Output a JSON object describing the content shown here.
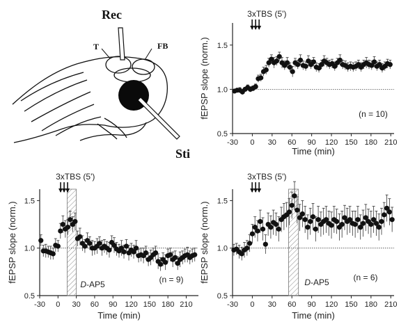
{
  "figure": {
    "schematic": {
      "labels": {
        "rec": "Rec",
        "t": "T",
        "fb": "FB",
        "sti": "Sti"
      }
    }
  },
  "chart_data": [
    {
      "id": "top-right",
      "type": "scatter",
      "stim_label": "3xTBS (5')",
      "n_label": "(n = 10)",
      "xlabel": "Time (min)",
      "ylabel": "fEPSP slope (norm.)",
      "xlim": [
        -30,
        215
      ],
      "ylim": [
        0.5,
        1.75
      ],
      "xticks": [
        -30,
        0,
        30,
        60,
        90,
        120,
        150,
        180,
        210
      ],
      "yticks": [
        0.5,
        1.0,
        1.5
      ],
      "baseline": 1.0,
      "arrows_x": 5,
      "drug_bar": null,
      "series": [
        {
          "x": [
            -27,
            -23,
            -19,
            -15,
            -11,
            -7,
            -3,
            1,
            5,
            9,
            13,
            17,
            21,
            25,
            29,
            33,
            37,
            41,
            45,
            49,
            53,
            57,
            61,
            65,
            69,
            73,
            77,
            81,
            85,
            89,
            93,
            97,
            101,
            105,
            109,
            113,
            117,
            121,
            125,
            129,
            133,
            137,
            141,
            145,
            149,
            153,
            157,
            161,
            165,
            169,
            173,
            177,
            181,
            185,
            189,
            193,
            197,
            201,
            205,
            209
          ],
          "y": [
            0.98,
            0.99,
            0.99,
            0.97,
            1.0,
            1.02,
            1.0,
            1.01,
            1.03,
            1.12,
            1.13,
            1.2,
            1.22,
            1.3,
            1.34,
            1.3,
            1.32,
            1.37,
            1.3,
            1.27,
            1.3,
            1.25,
            1.2,
            1.3,
            1.28,
            1.33,
            1.27,
            1.26,
            1.32,
            1.28,
            1.31,
            1.25,
            1.24,
            1.28,
            1.32,
            1.3,
            1.28,
            1.29,
            1.26,
            1.3,
            1.33,
            1.28,
            1.27,
            1.25,
            1.26,
            1.25,
            1.26,
            1.28,
            1.25,
            1.28,
            1.3,
            1.28,
            1.27,
            1.31,
            1.26,
            1.28,
            1.24,
            1.26,
            1.29,
            1.28
          ],
          "err": [
            0.02,
            0.02,
            0.03,
            0.03,
            0.02,
            0.03,
            0.03,
            0.03,
            0.03,
            0.04,
            0.04,
            0.05,
            0.05,
            0.05,
            0.05,
            0.06,
            0.05,
            0.05,
            0.06,
            0.05,
            0.06,
            0.05,
            0.06,
            0.05,
            0.05,
            0.06,
            0.05,
            0.05,
            0.06,
            0.05,
            0.05,
            0.05,
            0.05,
            0.05,
            0.06,
            0.05,
            0.05,
            0.05,
            0.05,
            0.05,
            0.06,
            0.05,
            0.05,
            0.05,
            0.05,
            0.05,
            0.05,
            0.05,
            0.05,
            0.05,
            0.06,
            0.05,
            0.05,
            0.06,
            0.05,
            0.05,
            0.05,
            0.05,
            0.05,
            0.05
          ]
        }
      ]
    },
    {
      "id": "bottom-left",
      "type": "scatter",
      "stim_label": "3xTBS (5')",
      "n_label": "(n = 9)",
      "drug_label": "D-AP5",
      "xlabel": "Time (min)",
      "ylabel": "fEPSP slope (norm.)",
      "xlim": [
        -30,
        230
      ],
      "ylim": [
        0.5,
        1.62
      ],
      "xticks": [
        -30,
        0,
        30,
        60,
        90,
        120,
        150,
        180,
        210
      ],
      "yticks": [
        0.5,
        1.0,
        1.5
      ],
      "baseline": 1.0,
      "arrows_x": 10,
      "drug_bar": [
        15,
        30
      ],
      "series": [
        {
          "x": [
            -28,
            -24,
            -20,
            -16,
            -12,
            -8,
            -4,
            0,
            4,
            8,
            12,
            16,
            20,
            24,
            28,
            32,
            36,
            40,
            44,
            48,
            52,
            56,
            60,
            64,
            68,
            72,
            76,
            80,
            84,
            88,
            92,
            96,
            100,
            104,
            108,
            112,
            116,
            120,
            124,
            128,
            132,
            136,
            140,
            144,
            148,
            152,
            156,
            160,
            164,
            168,
            172,
            176,
            180,
            184,
            188,
            192,
            196,
            200,
            204,
            208,
            212,
            216,
            220,
            224
          ],
          "y": [
            1.08,
            0.97,
            0.97,
            0.96,
            0.95,
            0.94,
            1.03,
            1.02,
            1.18,
            1.25,
            1.2,
            1.22,
            1.3,
            1.25,
            1.28,
            1.1,
            1.12,
            1.05,
            1.02,
            1.08,
            1.05,
            1.0,
            1.0,
            1.02,
            1.05,
            1.0,
            1.02,
            1.0,
            0.98,
            1.06,
            1.03,
            0.99,
            0.97,
            1.0,
            0.96,
            1.02,
            0.95,
            0.98,
            0.96,
            1.0,
            0.92,
            0.93,
            0.92,
            0.95,
            0.88,
            0.9,
            0.93,
            0.95,
            0.86,
            0.83,
            0.88,
            0.85,
            0.92,
            0.93,
            0.88,
            0.9,
            0.84,
            0.88,
            0.9,
            0.92,
            0.93,
            0.9,
            0.92,
            0.93
          ],
          "err": [
            0.06,
            0.06,
            0.07,
            0.06,
            0.07,
            0.06,
            0.07,
            0.06,
            0.08,
            0.09,
            0.09,
            0.08,
            0.09,
            0.08,
            0.09,
            0.08,
            0.09,
            0.08,
            0.07,
            0.08,
            0.07,
            0.08,
            0.07,
            0.08,
            0.07,
            0.08,
            0.07,
            0.07,
            0.08,
            0.07,
            0.08,
            0.07,
            0.07,
            0.08,
            0.07,
            0.07,
            0.08,
            0.07,
            0.07,
            0.08,
            0.07,
            0.07,
            0.08,
            0.07,
            0.07,
            0.08,
            0.07,
            0.07,
            0.08,
            0.07,
            0.07,
            0.08,
            0.07,
            0.07,
            0.08,
            0.07,
            0.07,
            0.08,
            0.07,
            0.07,
            0.08,
            0.07,
            0.07,
            0.07
          ]
        }
      ]
    },
    {
      "id": "bottom-right",
      "type": "scatter",
      "stim_label": "3xTBS (5')",
      "n_label": "(n = 6)",
      "drug_label": "D-AP5",
      "xlabel": "Time (min)",
      "ylabel": "fEPSP slope (norm.)",
      "xlim": [
        -30,
        215
      ],
      "ylim": [
        0.5,
        1.62
      ],
      "xticks": [
        -30,
        0,
        30,
        60,
        90,
        120,
        150,
        180,
        210
      ],
      "yticks": [
        0.5,
        1.0,
        1.5
      ],
      "baseline": 1.0,
      "arrows_x": 5,
      "drug_bar": [
        55,
        70
      ],
      "series": [
        {
          "x": [
            -28,
            -24,
            -20,
            -16,
            -12,
            -8,
            -4,
            0,
            4,
            8,
            12,
            16,
            20,
            24,
            28,
            32,
            36,
            40,
            44,
            48,
            52,
            56,
            60,
            64,
            68,
            72,
            76,
            80,
            84,
            88,
            92,
            96,
            100,
            104,
            108,
            112,
            116,
            120,
            124,
            128,
            132,
            136,
            140,
            144,
            148,
            152,
            156,
            160,
            164,
            168,
            172,
            176,
            180,
            184,
            188,
            192,
            196,
            200,
            204,
            208,
            212
          ],
          "y": [
            0.98,
            0.99,
            0.96,
            0.94,
            0.98,
            1.0,
            1.05,
            1.15,
            1.22,
            1.18,
            1.28,
            1.2,
            1.04,
            1.25,
            1.22,
            1.27,
            1.25,
            1.2,
            1.3,
            1.33,
            1.35,
            1.38,
            1.45,
            1.55,
            1.4,
            1.32,
            1.36,
            1.3,
            1.22,
            1.28,
            1.33,
            1.2,
            1.3,
            1.25,
            1.28,
            1.3,
            1.26,
            1.24,
            1.3,
            1.28,
            1.22,
            1.25,
            1.32,
            1.28,
            1.3,
            1.26,
            1.25,
            1.3,
            1.22,
            1.26,
            1.32,
            1.28,
            1.25,
            1.3,
            1.26,
            1.22,
            1.28,
            1.35,
            1.42,
            1.38,
            1.3
          ],
          "err": [
            0.06,
            0.06,
            0.07,
            0.07,
            0.08,
            0.08,
            0.09,
            0.1,
            0.11,
            0.11,
            0.12,
            0.12,
            0.1,
            0.12,
            0.12,
            0.13,
            0.12,
            0.13,
            0.13,
            0.14,
            0.13,
            0.14,
            0.14,
            0.15,
            0.14,
            0.14,
            0.14,
            0.14,
            0.13,
            0.14,
            0.14,
            0.13,
            0.14,
            0.13,
            0.14,
            0.14,
            0.13,
            0.14,
            0.14,
            0.13,
            0.14,
            0.14,
            0.13,
            0.14,
            0.14,
            0.13,
            0.14,
            0.14,
            0.13,
            0.14,
            0.14,
            0.13,
            0.14,
            0.14,
            0.13,
            0.14,
            0.14,
            0.13,
            0.14,
            0.14,
            0.13
          ]
        }
      ]
    }
  ]
}
